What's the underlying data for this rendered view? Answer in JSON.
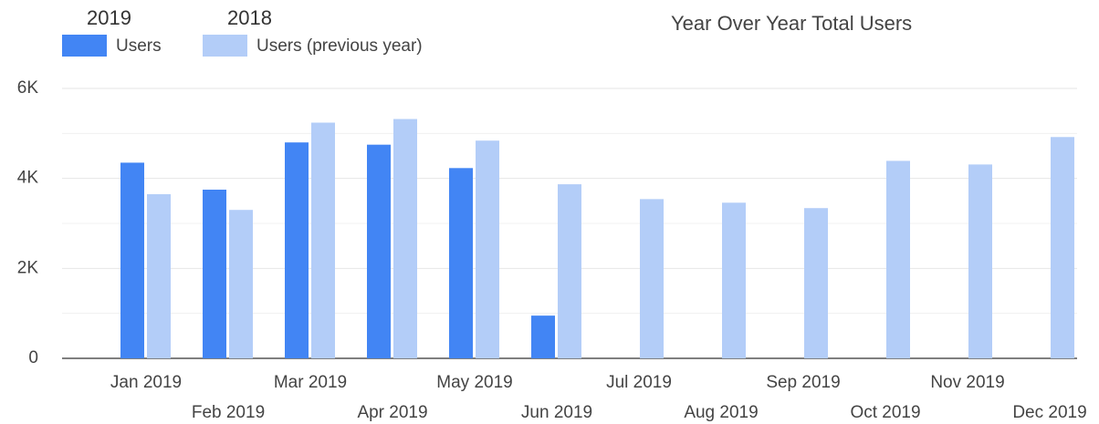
{
  "chart_data": {
    "type": "bar",
    "title": "Year Over Year Total Users",
    "categories": [
      "Jan 2019",
      "Feb 2019",
      "Mar 2019",
      "Apr 2019",
      "May 2019",
      "Jun 2019",
      "Jul 2019",
      "Aug 2019",
      "Sep 2019",
      "Oct 2019",
      "Nov 2019",
      "Dec 2019"
    ],
    "series": [
      {
        "name": "Users",
        "period": "2019",
        "color": "#4285f4",
        "values": [
          4350,
          3750,
          4800,
          4750,
          4230,
          950,
          null,
          null,
          null,
          null,
          null,
          null
        ]
      },
      {
        "name": "Users (previous year)",
        "period": "2018",
        "color": "#b3cdf8",
        "values": [
          3650,
          3300,
          5240,
          5320,
          4840,
          3870,
          3540,
          3460,
          3340,
          4390,
          4310,
          4920
        ]
      }
    ],
    "ylim": [
      0,
      6000
    ],
    "yticks": [
      {
        "value": 0,
        "label": "0"
      },
      {
        "value": 2000,
        "label": "2K"
      },
      {
        "value": 4000,
        "label": "4K"
      },
      {
        "value": 6000,
        "label": "6K"
      }
    ],
    "yminor": [
      1000,
      3000,
      5000
    ],
    "grid": true,
    "legend": "top-left"
  }
}
